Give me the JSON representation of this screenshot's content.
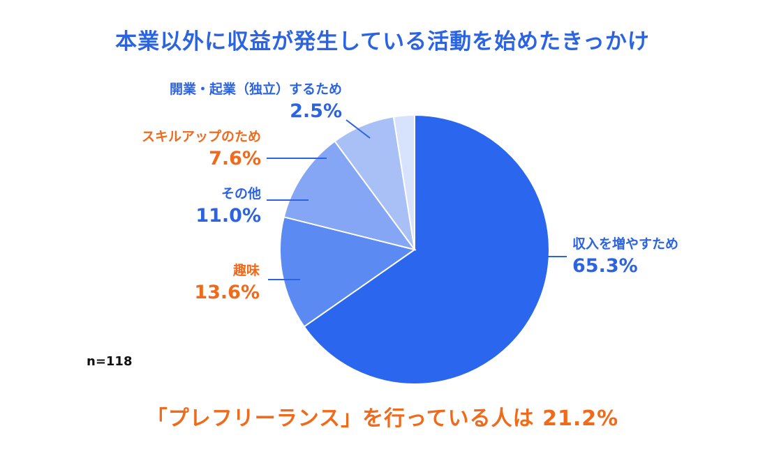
{
  "chart_data": {
    "type": "pie",
    "title": "本業以外に収益が発生している活動を始めたきっかけ",
    "slices": [
      {
        "label": "収入を増やすため",
        "value": 65.3,
        "value_label": "65.3%",
        "color": "#2a66ee",
        "label_color": "#2b63e0"
      },
      {
        "label": "趣味",
        "value": 13.6,
        "value_label": "13.6%",
        "color": "#5a8af2",
        "label_color": "#f06a1c"
      },
      {
        "label": "その他",
        "value": 11.0,
        "value_label": "11.0%",
        "color": "#84a6f4",
        "label_color": "#2b63e0"
      },
      {
        "label": "スキルアップのため",
        "value": 7.6,
        "value_label": "7.6%",
        "color": "#a9c0f7",
        "label_color": "#f06a1c"
      },
      {
        "label": "開業・起業（独立）するため",
        "value": 2.5,
        "value_label": "2.5%",
        "color": "#d7e2fc",
        "label_color": "#2b63e0"
      }
    ],
    "sample_size": "n=118"
  },
  "footer": "「プレフリーランス」を行っている人は 21.2%",
  "colors": {
    "title": "#2b63e0",
    "accent_orange": "#f06a1c",
    "leader_line": "#2b63e0"
  }
}
